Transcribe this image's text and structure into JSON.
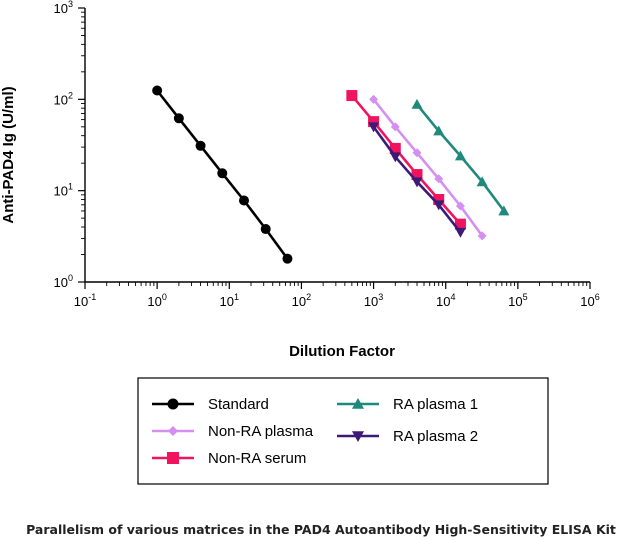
{
  "caption": "Parallelism of various matrices in the PAD4 Autoantibody High-Sensitivity ELISA Kit",
  "chart_data": {
    "type": "line",
    "xlabel": "Dilution Factor",
    "ylabel": "Anti-PAD4 Ig (U/ml)",
    "xscale": "log",
    "yscale": "log",
    "xlim": [
      0.1,
      1000000
    ],
    "ylim": [
      1,
      1000
    ],
    "x_ticks": [
      {
        "base": "10",
        "exp": "-1",
        "value": 0.1
      },
      {
        "base": "10",
        "exp": "0",
        "value": 1
      },
      {
        "base": "10",
        "exp": "1",
        "value": 10
      },
      {
        "base": "10",
        "exp": "2",
        "value": 100
      },
      {
        "base": "10",
        "exp": "3",
        "value": 1000
      },
      {
        "base": "10",
        "exp": "4",
        "value": 10000
      },
      {
        "base": "10",
        "exp": "5",
        "value": 100000
      },
      {
        "base": "10",
        "exp": "6",
        "value": 1000000
      }
    ],
    "y_ticks": [
      {
        "base": "10",
        "exp": "0",
        "value": 1
      },
      {
        "base": "10",
        "exp": "1",
        "value": 10
      },
      {
        "base": "10",
        "exp": "2",
        "value": 100
      },
      {
        "base": "10",
        "exp": "3",
        "value": 1000
      }
    ],
    "grid": false,
    "legend_position": "bottom",
    "series": [
      {
        "name": "Standard",
        "color": "#000000",
        "marker": "circle",
        "x": [
          1,
          2,
          4,
          8,
          16,
          32,
          64
        ],
        "y": [
          125,
          62,
          31,
          15.5,
          7.8,
          3.8,
          1.8
        ]
      },
      {
        "name": "Non-RA plasma",
        "color": "#d58ff0",
        "marker": "diamond",
        "x": [
          1000,
          2000,
          4000,
          8000,
          16000,
          32000
        ],
        "y": [
          100,
          50,
          26,
          13.5,
          6.8,
          3.2
        ]
      },
      {
        "name": "Non-RA serum",
        "color": "#f0145e",
        "marker": "square",
        "x": [
          500,
          1000,
          2000,
          4000,
          8000,
          16000
        ],
        "y": [
          110,
          57,
          29,
          15,
          8,
          4.3
        ]
      },
      {
        "name": "RA plasma 1",
        "color": "#1f8a7c",
        "marker": "triangle-up",
        "x": [
          4000,
          8000,
          16000,
          32000,
          64000
        ],
        "y": [
          88,
          45,
          24,
          12.5,
          6
        ]
      },
      {
        "name": "RA plasma 2",
        "color": "#3d1a78",
        "marker": "triangle-down",
        "x": [
          1000,
          2000,
          4000,
          8000,
          16000
        ],
        "y": [
          50,
          23.5,
          12.5,
          7,
          3.5
        ]
      }
    ]
  }
}
